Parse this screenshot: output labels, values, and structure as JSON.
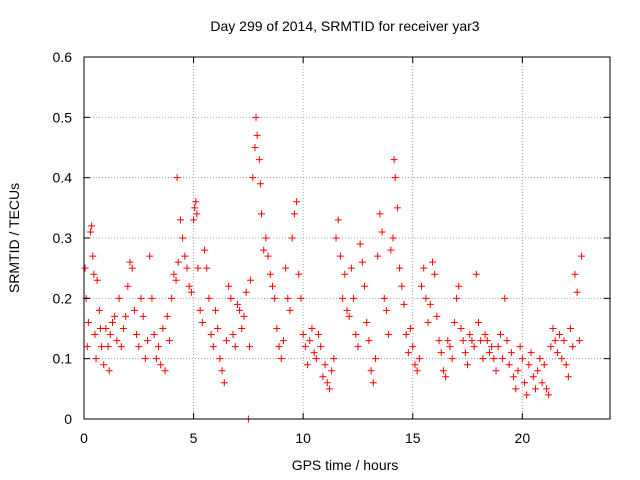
{
  "chart_data": {
    "type": "scatter",
    "title": "Day 299 of 2014, SRMTID for receiver yar3",
    "xlabel": "GPS time / hours",
    "ylabel": "SRMTID / TECUs",
    "xlim": [
      0,
      24
    ],
    "ylim": [
      0,
      0.6
    ],
    "x_ticks": [
      0,
      5,
      10,
      15,
      20
    ],
    "x_tick_labels": [
      "0",
      "5",
      "10",
      "15",
      "20"
    ],
    "y_ticks": [
      0,
      0.1,
      0.2,
      0.3,
      0.4,
      0.5,
      0.6
    ],
    "y_tick_labels": [
      "0",
      "0.1",
      "0.2",
      "0.3",
      "0.4",
      "0.5",
      "0.6"
    ],
    "grid": true,
    "marker": "plus",
    "color": "#ff0000",
    "x_data_range": [
      0,
      22.7
    ],
    "series": [
      {
        "name": "SRMTID",
        "points": [
          [
            0.05,
            0.25
          ],
          [
            0.1,
            0.2
          ],
          [
            0.15,
            0.12
          ],
          [
            0.2,
            0.16
          ],
          [
            0.3,
            0.31
          ],
          [
            0.35,
            0.32
          ],
          [
            0.4,
            0.27
          ],
          [
            0.45,
            0.24
          ],
          [
            0.5,
            0.14
          ],
          [
            0.55,
            0.1
          ],
          [
            0.6,
            0.23
          ],
          [
            0.7,
            0.18
          ],
          [
            0.75,
            0.15
          ],
          [
            0.8,
            0.12
          ],
          [
            0.9,
            0.09
          ],
          [
            1.0,
            0.15
          ],
          [
            1.1,
            0.12
          ],
          [
            1.15,
            0.08
          ],
          [
            1.2,
            0.14
          ],
          [
            1.3,
            0.16
          ],
          [
            1.4,
            0.17
          ],
          [
            1.5,
            0.13
          ],
          [
            1.6,
            0.2
          ],
          [
            1.7,
            0.12
          ],
          [
            1.8,
            0.15
          ],
          [
            1.9,
            0.17
          ],
          [
            2.0,
            0.22
          ],
          [
            2.1,
            0.26
          ],
          [
            2.2,
            0.25
          ],
          [
            2.3,
            0.18
          ],
          [
            2.4,
            0.14
          ],
          [
            2.5,
            0.12
          ],
          [
            2.6,
            0.2
          ],
          [
            2.7,
            0.17
          ],
          [
            2.8,
            0.1
          ],
          [
            2.9,
            0.13
          ],
          [
            3.0,
            0.27
          ],
          [
            3.1,
            0.2
          ],
          [
            3.2,
            0.14
          ],
          [
            3.3,
            0.1
          ],
          [
            3.4,
            0.12
          ],
          [
            3.5,
            0.09
          ],
          [
            3.6,
            0.15
          ],
          [
            3.7,
            0.08
          ],
          [
            3.8,
            0.17
          ],
          [
            3.9,
            0.13
          ],
          [
            4.0,
            0.2
          ],
          [
            4.1,
            0.24
          ],
          [
            4.2,
            0.23
          ],
          [
            4.25,
            0.4
          ],
          [
            4.3,
            0.26
          ],
          [
            4.4,
            0.33
          ],
          [
            4.5,
            0.3
          ],
          [
            4.6,
            0.27
          ],
          [
            4.7,
            0.25
          ],
          [
            4.8,
            0.22
          ],
          [
            4.9,
            0.21
          ],
          [
            5.0,
            0.33
          ],
          [
            5.05,
            0.35
          ],
          [
            5.1,
            0.36
          ],
          [
            5.15,
            0.34
          ],
          [
            5.2,
            0.25
          ],
          [
            5.3,
            0.18
          ],
          [
            5.4,
            0.16
          ],
          [
            5.5,
            0.28
          ],
          [
            5.6,
            0.25
          ],
          [
            5.7,
            0.2
          ],
          [
            5.8,
            0.14
          ],
          [
            5.9,
            0.12
          ],
          [
            6.0,
            0.18
          ],
          [
            6.1,
            0.15
          ],
          [
            6.2,
            0.1
          ],
          [
            6.3,
            0.08
          ],
          [
            6.4,
            0.06
          ],
          [
            6.5,
            0.13
          ],
          [
            6.6,
            0.22
          ],
          [
            6.7,
            0.2
          ],
          [
            6.8,
            0.14
          ],
          [
            6.9,
            0.12
          ],
          [
            7.0,
            0.19
          ],
          [
            7.1,
            0.18
          ],
          [
            7.2,
            0.15
          ],
          [
            7.3,
            0.17
          ],
          [
            7.4,
            0.21
          ],
          [
            7.5,
            0.0
          ],
          [
            7.55,
            0.12
          ],
          [
            7.6,
            0.23
          ],
          [
            7.7,
            0.4
          ],
          [
            7.8,
            0.45
          ],
          [
            7.85,
            0.5
          ],
          [
            7.9,
            0.47
          ],
          [
            8.0,
            0.43
          ],
          [
            8.05,
            0.39
          ],
          [
            8.1,
            0.34
          ],
          [
            8.2,
            0.28
          ],
          [
            8.3,
            0.3
          ],
          [
            8.4,
            0.27
          ],
          [
            8.5,
            0.24
          ],
          [
            8.6,
            0.22
          ],
          [
            8.7,
            0.2
          ],
          [
            8.8,
            0.15
          ],
          [
            8.9,
            0.12
          ],
          [
            9.0,
            0.1
          ],
          [
            9.1,
            0.13
          ],
          [
            9.2,
            0.25
          ],
          [
            9.3,
            0.2
          ],
          [
            9.4,
            0.18
          ],
          [
            9.5,
            0.3
          ],
          [
            9.6,
            0.34
          ],
          [
            9.7,
            0.36
          ],
          [
            9.8,
            0.24
          ],
          [
            9.9,
            0.2
          ],
          [
            10.0,
            0.14
          ],
          [
            10.1,
            0.12
          ],
          [
            10.2,
            0.09
          ],
          [
            10.3,
            0.13
          ],
          [
            10.4,
            0.15
          ],
          [
            10.5,
            0.11
          ],
          [
            10.6,
            0.1
          ],
          [
            10.7,
            0.14
          ],
          [
            10.8,
            0.12
          ],
          [
            10.9,
            0.07
          ],
          [
            11.0,
            0.09
          ],
          [
            11.1,
            0.06
          ],
          [
            11.2,
            0.05
          ],
          [
            11.3,
            0.08
          ],
          [
            11.4,
            0.1
          ],
          [
            11.5,
            0.3
          ],
          [
            11.6,
            0.33
          ],
          [
            11.7,
            0.27
          ],
          [
            11.8,
            0.2
          ],
          [
            11.9,
            0.24
          ],
          [
            12.0,
            0.18
          ],
          [
            12.1,
            0.17
          ],
          [
            12.2,
            0.25
          ],
          [
            12.3,
            0.2
          ],
          [
            12.4,
            0.14
          ],
          [
            12.5,
            0.12
          ],
          [
            12.6,
            0.29
          ],
          [
            12.7,
            0.26
          ],
          [
            12.8,
            0.22
          ],
          [
            12.9,
            0.16
          ],
          [
            13.0,
            0.13
          ],
          [
            13.1,
            0.08
          ],
          [
            13.2,
            0.06
          ],
          [
            13.3,
            0.1
          ],
          [
            13.4,
            0.27
          ],
          [
            13.5,
            0.34
          ],
          [
            13.6,
            0.31
          ],
          [
            13.7,
            0.2
          ],
          [
            13.8,
            0.18
          ],
          [
            13.9,
            0.14
          ],
          [
            14.0,
            0.28
          ],
          [
            14.1,
            0.3
          ],
          [
            14.15,
            0.43
          ],
          [
            14.2,
            0.4
          ],
          [
            14.3,
            0.35
          ],
          [
            14.4,
            0.25
          ],
          [
            14.5,
            0.22
          ],
          [
            14.6,
            0.19
          ],
          [
            14.7,
            0.14
          ],
          [
            14.8,
            0.11
          ],
          [
            14.9,
            0.15
          ],
          [
            15.0,
            0.12
          ],
          [
            15.1,
            0.09
          ],
          [
            15.2,
            0.08
          ],
          [
            15.3,
            0.1
          ],
          [
            15.4,
            0.22
          ],
          [
            15.5,
            0.25
          ],
          [
            15.6,
            0.2
          ],
          [
            15.7,
            0.16
          ],
          [
            15.8,
            0.19
          ],
          [
            15.9,
            0.26
          ],
          [
            16.0,
            0.24
          ],
          [
            16.1,
            0.17
          ],
          [
            16.2,
            0.13
          ],
          [
            16.3,
            0.11
          ],
          [
            16.4,
            0.08
          ],
          [
            16.5,
            0.07
          ],
          [
            16.6,
            0.13
          ],
          [
            16.7,
            0.12
          ],
          [
            16.8,
            0.1
          ],
          [
            16.9,
            0.16
          ],
          [
            17.0,
            0.2
          ],
          [
            17.1,
            0.22
          ],
          [
            17.2,
            0.15
          ],
          [
            17.3,
            0.13
          ],
          [
            17.4,
            0.11
          ],
          [
            17.5,
            0.09
          ],
          [
            17.6,
            0.14
          ],
          [
            17.7,
            0.13
          ],
          [
            17.8,
            0.12
          ],
          [
            17.9,
            0.24
          ],
          [
            18.0,
            0.16
          ],
          [
            18.1,
            0.13
          ],
          [
            18.2,
            0.1
          ],
          [
            18.3,
            0.14
          ],
          [
            18.4,
            0.13
          ],
          [
            18.5,
            0.11
          ],
          [
            18.6,
            0.12
          ],
          [
            18.7,
            0.1
          ],
          [
            18.8,
            0.08
          ],
          [
            18.9,
            0.12
          ],
          [
            19.0,
            0.14
          ],
          [
            19.1,
            0.1
          ],
          [
            19.2,
            0.2
          ],
          [
            19.3,
            0.13
          ],
          [
            19.4,
            0.09
          ],
          [
            19.5,
            0.11
          ],
          [
            19.6,
            0.07
          ],
          [
            19.7,
            0.05
          ],
          [
            19.8,
            0.08
          ],
          [
            19.9,
            0.12
          ],
          [
            20.0,
            0.1
          ],
          [
            20.1,
            0.06
          ],
          [
            20.2,
            0.04
          ],
          [
            20.3,
            0.09
          ],
          [
            20.4,
            0.11
          ],
          [
            20.5,
            0.07
          ],
          [
            20.6,
            0.05
          ],
          [
            20.7,
            0.08
          ],
          [
            20.8,
            0.1
          ],
          [
            20.9,
            0.06
          ],
          [
            21.0,
            0.09
          ],
          [
            21.1,
            0.05
          ],
          [
            21.2,
            0.04
          ],
          [
            21.3,
            0.12
          ],
          [
            21.4,
            0.15
          ],
          [
            21.5,
            0.13
          ],
          [
            21.6,
            0.11
          ],
          [
            21.7,
            0.14
          ],
          [
            21.8,
            0.1
          ],
          [
            21.9,
            0.13
          ],
          [
            22.0,
            0.09
          ],
          [
            22.1,
            0.07
          ],
          [
            22.2,
            0.15
          ],
          [
            22.3,
            0.12
          ],
          [
            22.4,
            0.24
          ],
          [
            22.5,
            0.21
          ],
          [
            22.6,
            0.13
          ],
          [
            22.7,
            0.27
          ]
        ]
      }
    ]
  }
}
